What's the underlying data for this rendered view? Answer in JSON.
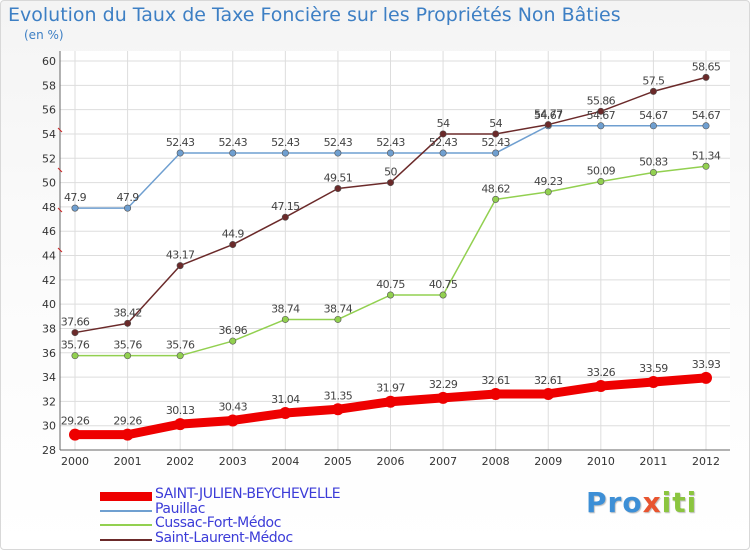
{
  "title": "Evolution du Taux de Taxe Foncière sur les Propriétés Non Bâties",
  "unit_label": "(en %)",
  "logo": {
    "parts": [
      "Pro",
      "x",
      "iti"
    ],
    "colors": [
      "#3d8fd6",
      "#e8542f",
      "#8bc53f"
    ]
  },
  "chart_data": {
    "type": "line",
    "title": "Evolution du Taux de Taxe Foncière sur les Propriétés Non Bâties",
    "xlabel": "",
    "ylabel": "(en %)",
    "ylim": [
      28,
      60
    ],
    "yticks": [
      28,
      30,
      32,
      34,
      36,
      38,
      40,
      42,
      44,
      46,
      48,
      50,
      52,
      54,
      56,
      58,
      60
    ],
    "categories": [
      "2000",
      "2001",
      "2002",
      "2003",
      "2004",
      "2005",
      "2006",
      "2007",
      "2008",
      "2009",
      "2010",
      "2011",
      "2012"
    ],
    "grid": true,
    "series": [
      {
        "name": "SAINT-JULIEN-BEYCHEVELLE",
        "color": "#ee0000",
        "values": [
          29.26,
          29.26,
          30.13,
          30.43,
          31.04,
          31.35,
          31.97,
          32.29,
          32.61,
          32.61,
          33.26,
          33.59,
          33.93
        ],
        "labels": [
          "29.26",
          "29.26",
          "30.13",
          "30.43",
          "31.04",
          "31.35",
          "31.97",
          "32.29",
          "32.61",
          "32.61",
          "33.26",
          "33.59",
          "33.93"
        ]
      },
      {
        "name": "Pauillac",
        "color": "#6f9fd0",
        "values": [
          47.9,
          47.9,
          52.43,
          52.43,
          52.43,
          52.43,
          52.43,
          52.43,
          52.43,
          54.67,
          54.67,
          54.67,
          54.67
        ],
        "labels": [
          "47.9",
          "47.9",
          "52.43",
          "52.43",
          "52.43",
          "52.43",
          "52.43",
          "52.43",
          "52.43",
          "54.67",
          "54.67",
          "54.67",
          "54.67"
        ]
      },
      {
        "name": "Cussac-Fort-Médoc",
        "color": "#92d050",
        "values": [
          35.76,
          35.76,
          35.76,
          36.96,
          38.74,
          38.74,
          40.75,
          40.75,
          48.62,
          49.23,
          50.09,
          50.83,
          51.34
        ],
        "labels": [
          "35.76",
          "35.76",
          "35.76",
          "36.96",
          "38.74",
          "38.74",
          "40.75",
          "40.75",
          "48.62",
          "49.23",
          "50.09",
          "50.83",
          "51.34"
        ]
      },
      {
        "name": "Saint-Laurent-Médoc",
        "color": "#6b2a2a",
        "values": [
          37.66,
          38.42,
          43.17,
          44.9,
          47.15,
          49.51,
          50,
          54,
          54,
          54.77,
          55.86,
          57.5,
          58.65
        ],
        "labels": [
          "37.66",
          "38.42",
          "43.17",
          "44.9",
          "47.15",
          "49.51",
          "50",
          "54",
          "54",
          "54.77",
          "55.86",
          "57.5",
          "58.65"
        ]
      }
    ],
    "legend_position": "bottom-left"
  }
}
